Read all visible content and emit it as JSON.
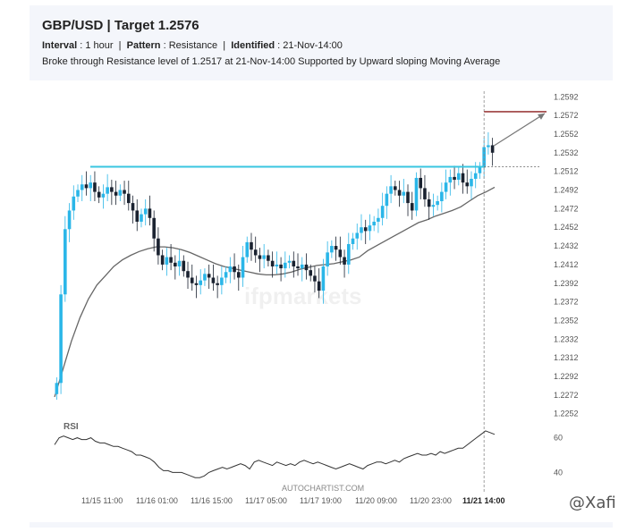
{
  "header": {
    "title": "GBP/USD | Target 1.2576",
    "interval_label": "Interval",
    "interval_value": "1 hour",
    "pattern_label": "Pattern",
    "pattern_value": "Resistance",
    "identified_label": "Identified",
    "identified_value": "21-Nov-14:00",
    "description": "Broke through Resistance level of 1.2517 at 21-Nov-14:00  Supported by Upward sloping Moving Average"
  },
  "watermark": "ifpmarkets",
  "credit": "AUTOCHARTIST.COM",
  "social_tag": "@Xafi",
  "colors": {
    "bull": "#2ab6e8",
    "bear": "#1a2230",
    "resistance": "#39c6e0",
    "target": "#8b1a1a",
    "ma": "#666666"
  },
  "chart_data": {
    "type": "candlestick",
    "y_ticks": [
      "1.2592",
      "1.2572",
      "1.2552",
      "1.2532",
      "1.2512",
      "1.2492",
      "1.2472",
      "1.2452",
      "1.2432",
      "1.2412",
      "1.2392",
      "1.2372",
      "1.2352",
      "1.2332",
      "1.2312",
      "1.2292",
      "1.2272",
      "1.2252"
    ],
    "ylim": [
      1.2245,
      1.2598
    ],
    "x_ticks": [
      "11/15 11:00",
      "11/16 01:00",
      "11/16 15:00",
      "11/17 05:00",
      "11/17 19:00",
      "11/20 09:00",
      "11/20 23:00",
      "11/21 14:00"
    ],
    "resistance_level": 1.2517,
    "target_level": 1.2576,
    "breakout_time": "11/21 14:00",
    "close_series": [
      1.2285,
      1.238,
      1.245,
      1.247,
      1.2485,
      1.2492,
      1.2498,
      1.2494,
      1.25,
      1.249,
      1.2484,
      1.2488,
      1.2495,
      1.249,
      1.2486,
      1.2492,
      1.2488,
      1.2478,
      1.247,
      1.2458,
      1.2466,
      1.2472,
      1.2462,
      1.244,
      1.2422,
      1.2412,
      1.242,
      1.2414,
      1.241,
      1.2416,
      1.2405,
      1.2398,
      1.2392,
      1.239,
      1.2395,
      1.2402,
      1.2398,
      1.2392,
      1.239,
      1.2398,
      1.2404,
      1.241,
      1.2404,
      1.2398,
      1.242,
      1.2436,
      1.2428,
      1.2422,
      1.2418,
      1.2422,
      1.2416,
      1.241,
      1.2412,
      1.2408,
      1.2414,
      1.2416,
      1.241,
      1.2408,
      1.2412,
      1.2406,
      1.24,
      1.2394,
      1.2384,
      1.241,
      1.2425,
      1.2432,
      1.2428,
      1.242,
      1.2412,
      1.2434,
      1.244,
      1.2446,
      1.2452,
      1.2448,
      1.2454,
      1.2458,
      1.2462,
      1.2475,
      1.2488,
      1.2496,
      1.2492,
      1.2486,
      1.249,
      1.2478,
      1.247,
      1.2505,
      1.2494,
      1.2482,
      1.2474,
      1.2476,
      1.248,
      1.249,
      1.25,
      1.2506,
      1.2503,
      1.251,
      1.25,
      1.2496,
      1.2504,
      1.251,
      1.2516,
      1.2538,
      1.254,
      1.2532
    ],
    "ma_series": [
      1.227,
      1.23,
      1.233,
      1.2355,
      1.2375,
      1.239,
      1.24,
      1.241,
      1.2417,
      1.2422,
      1.2426,
      1.2429,
      1.2431,
      1.2431,
      1.243,
      1.2428,
      1.2425,
      1.2421,
      1.2417,
      1.2413,
      1.241,
      1.2408,
      1.2406,
      1.2404,
      1.2402,
      1.2401,
      1.2401,
      1.2402,
      1.2404,
      1.2407,
      1.2409,
      1.2411,
      1.2412,
      1.2413,
      1.2415,
      1.2417,
      1.242,
      1.2427,
      1.2432,
      1.2437,
      1.2442,
      1.2447,
      1.2452,
      1.2457,
      1.246,
      1.2464,
      1.2467,
      1.247,
      1.2474,
      1.248,
      1.2486,
      1.249,
      1.2495
    ],
    "indicator": {
      "name": "RSI",
      "ticks": [
        "60",
        "40"
      ],
      "ylim": [
        34,
        66
      ],
      "values": [
        56,
        60,
        61,
        60,
        59,
        60,
        59,
        59,
        60,
        58,
        57,
        57,
        56,
        55,
        55,
        54,
        53,
        52,
        50,
        50,
        49,
        48,
        46,
        43,
        41,
        41,
        40,
        40,
        40,
        39,
        38,
        37,
        37,
        38,
        40,
        41,
        42,
        43,
        42,
        43,
        44,
        45,
        44,
        42,
        46,
        47,
        46,
        45,
        44,
        46,
        45,
        44,
        45,
        44,
        46,
        47,
        46,
        45,
        46,
        45,
        44,
        43,
        42,
        43,
        44,
        45,
        44,
        43,
        42,
        44,
        45,
        46,
        46,
        45,
        46,
        47,
        46,
        48,
        49,
        50,
        51,
        50,
        50,
        51,
        50,
        52,
        51,
        52,
        53,
        54,
        54,
        56,
        58,
        60,
        62,
        64,
        63,
        62
      ]
    }
  }
}
